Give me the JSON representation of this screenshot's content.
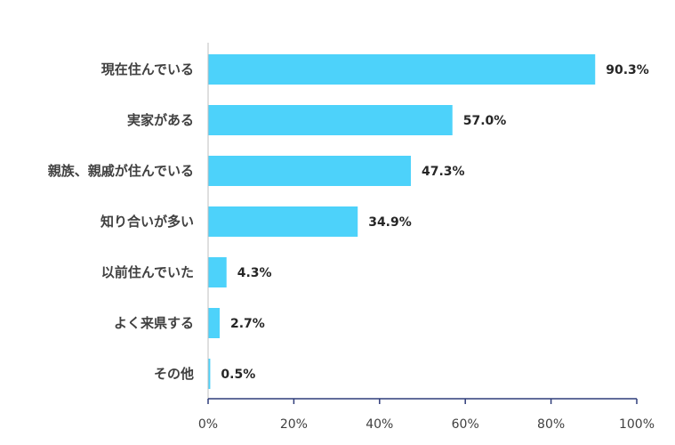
{
  "chart_data": {
    "type": "bar",
    "orientation": "horizontal",
    "categories": [
      "現在住んでいる",
      "実家がある",
      "親族、親戚が住んでいる",
      "知り合いが多い",
      "以前住んでいた",
      "よく来県する",
      "その他"
    ],
    "values": [
      90.3,
      57.0,
      47.3,
      34.9,
      4.3,
      2.7,
      0.5
    ],
    "value_labels": [
      "90.3%",
      "57.0%",
      "47.3%",
      "34.9%",
      "4.3%",
      "2.7%",
      "0.5%"
    ],
    "x_ticks": [
      "0%",
      "20%",
      "40%",
      "60%",
      "80%",
      "100%"
    ],
    "xlim": [
      0,
      100
    ],
    "grid": false,
    "legend": "none",
    "colors": {
      "bar": "#4dd2fa",
      "axis": "#2f3d7a",
      "text": "#404040"
    }
  }
}
